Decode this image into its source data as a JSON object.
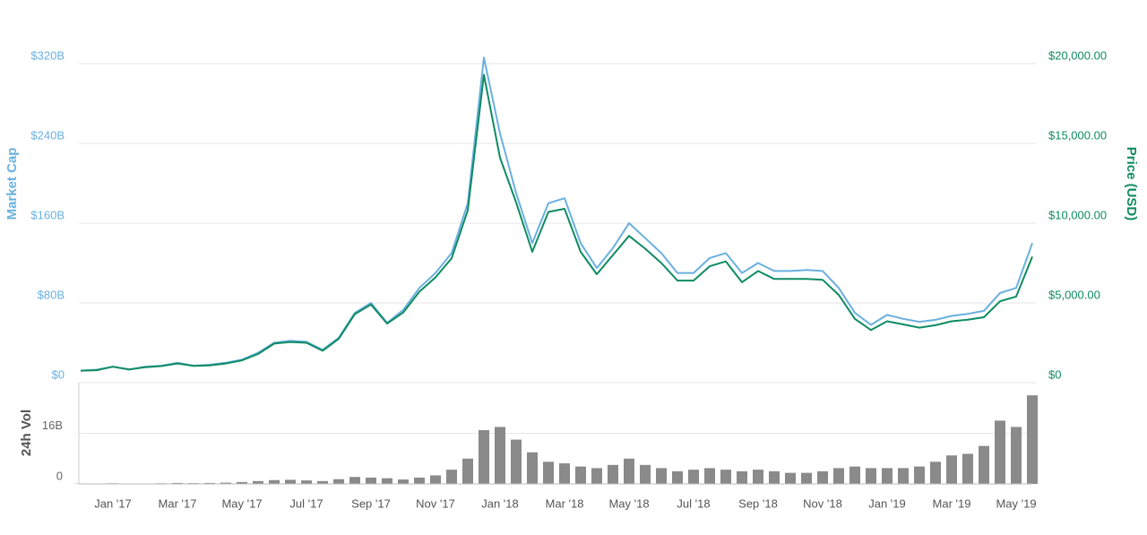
{
  "chart_data": {
    "type": "line",
    "categories": [
      null,
      null,
      "Jan '17",
      null,
      null,
      null,
      "Mar '17",
      null,
      null,
      null,
      "May '17",
      null,
      null,
      null,
      "Jul '17",
      null,
      null,
      null,
      "Sep '17",
      null,
      null,
      null,
      "Nov '17",
      null,
      null,
      null,
      "Jan '18",
      null,
      null,
      null,
      "Mar '18",
      null,
      null,
      null,
      "May '18",
      null,
      null,
      null,
      "Jul '18",
      null,
      null,
      null,
      "Sep '18",
      null,
      null,
      null,
      "Nov '18",
      null,
      null,
      null,
      "Jan '19",
      null,
      null,
      null,
      "Mar '19",
      null,
      null,
      null,
      "May '19",
      null
    ],
    "series": [
      {
        "name": "Market Cap",
        "color": "#6ab0de",
        "axis": "y",
        "values": [
          12,
          13,
          16,
          13,
          16,
          17,
          20,
          17,
          18,
          20,
          23,
          30,
          40,
          42,
          41,
          33,
          45,
          70,
          80,
          60,
          73,
          95,
          110,
          130,
          180,
          326,
          250,
          190,
          140,
          180,
          185,
          140,
          115,
          135,
          160,
          145,
          130,
          110,
          110,
          125,
          130,
          110,
          120,
          112,
          112,
          113,
          112,
          95,
          70,
          58,
          68,
          64,
          61,
          63,
          67,
          69,
          72,
          90,
          95,
          140
        ]
      },
      {
        "name": "Price (USD)",
        "color": "#0f8b63",
        "axis": "y2",
        "values": [
          750,
          780,
          1000,
          830,
          970,
          1040,
          1200,
          1050,
          1080,
          1200,
          1400,
          1800,
          2450,
          2550,
          2500,
          2000,
          2750,
          4300,
          4900,
          3700,
          4400,
          5700,
          6600,
          7800,
          10800,
          19300,
          14100,
          11300,
          8200,
          10700,
          10900,
          8200,
          6800,
          8000,
          9200,
          8400,
          7500,
          6400,
          6400,
          7300,
          7600,
          6300,
          7000,
          6500,
          6500,
          6500,
          6450,
          5500,
          4000,
          3300,
          3850,
          3650,
          3450,
          3600,
          3850,
          3950,
          4100,
          5100,
          5400,
          7900
        ]
      }
    ],
    "ylim": [
      0,
      320
    ],
    "yticks": [
      {
        "value": 0,
        "label": "$0"
      },
      {
        "value": 80,
        "label": "$80B"
      },
      {
        "value": 160,
        "label": "$160B"
      },
      {
        "value": 240,
        "label": "$240B"
      },
      {
        "value": 320,
        "label": "$320B"
      }
    ],
    "y2lim": [
      0,
      20000
    ],
    "y2ticks": [
      {
        "value": 0,
        "label": "$0"
      },
      {
        "value": 5000,
        "label": "$5,000.00"
      },
      {
        "value": 10000,
        "label": "$10,000.00"
      },
      {
        "value": 15000,
        "label": "$15,000.00"
      },
      {
        "value": 20000,
        "label": "$20,000.00"
      }
    ],
    "grid": true,
    "volume": {
      "type": "bar",
      "label": "24h Vol",
      "color": "#8a8a8a",
      "values": [
        0.1,
        0.1,
        0.2,
        0.15,
        0.15,
        0.2,
        0.3,
        0.25,
        0.3,
        0.4,
        0.6,
        0.9,
        1.2,
        1.3,
        1.1,
        0.9,
        1.5,
        2.2,
        2.0,
        1.8,
        1.4,
        2.0,
        2.7,
        4.5,
        8,
        17,
        18,
        14,
        10,
        7,
        6.5,
        5.5,
        5,
        6,
        8,
        6,
        5,
        4,
        4.5,
        5,
        4.5,
        4,
        4.5,
        4,
        3.5,
        3.5,
        4,
        5,
        5.5,
        5,
        5,
        5,
        5.5,
        7,
        9,
        9.5,
        12,
        20,
        18,
        28
      ],
      "ylim": [
        0,
        32
      ],
      "yticks": [
        0,
        {
          "value": 16,
          "label": "16B"
        }
      ]
    }
  }
}
